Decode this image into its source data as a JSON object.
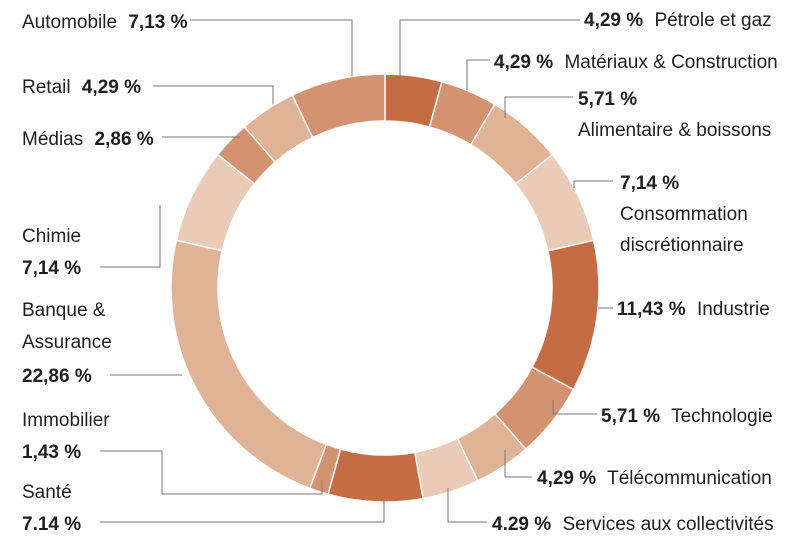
{
  "chart_data": {
    "type": "pie",
    "donut": true,
    "start_angle_deg": 0,
    "direction": "clockwise",
    "colors": {
      "dark": "#c46c43",
      "medium": "#d39371",
      "light": "#e0b397",
      "pale": "#e9cbb8"
    },
    "slices": [
      {
        "key": "petrole",
        "label": "Pétrole et gaz",
        "value": 4.29,
        "display": "4,29 %",
        "color": "#c46c43"
      },
      {
        "key": "materiaux",
        "label": "Matériaux & Construction",
        "value": 4.29,
        "display": "4,29 %",
        "color": "#d39371"
      },
      {
        "key": "alimentaire",
        "label": "Alimentaire & boissons",
        "value": 5.71,
        "display": "5,71 %",
        "color": "#e0b397"
      },
      {
        "key": "consommation",
        "label": "Consommation discrétionnaire",
        "value": 7.14,
        "display": "7,14 %",
        "color": "#e9cbb8"
      },
      {
        "key": "industrie",
        "label": "Industrie",
        "value": 11.43,
        "display": "11,43 %",
        "color": "#c46c43"
      },
      {
        "key": "technologie",
        "label": "Technologie",
        "value": 5.71,
        "display": "5,71 %",
        "color": "#d39371"
      },
      {
        "key": "telecom",
        "label": "Télécommunication",
        "value": 4.29,
        "display": "4,29 %",
        "color": "#e0b397"
      },
      {
        "key": "services",
        "label": "Services aux collectivités",
        "value": 4.29,
        "display": "4.29 %",
        "color": "#e9cbb8"
      },
      {
        "key": "sante",
        "label": "Santé",
        "value": 7.14,
        "display": "7.14 %",
        "color": "#c46c43"
      },
      {
        "key": "immobilier",
        "label": "Immobilier",
        "value": 1.43,
        "display": "1,43 %",
        "color": "#d39371"
      },
      {
        "key": "banque",
        "label": "Banque & Assurance",
        "value": 22.86,
        "display": "22,86 %",
        "color": "#e0b397"
      },
      {
        "key": "chimie",
        "label": "Chimie",
        "value": 7.14,
        "display": "7,14 %",
        "color": "#e9cbb8"
      },
      {
        "key": "medias",
        "label": "Médias",
        "value": 2.86,
        "display": "2,86 %",
        "color": "#d39371"
      },
      {
        "key": "retail",
        "label": "Retail",
        "value": 4.29,
        "display": "4,29 %",
        "color": "#e0b397"
      },
      {
        "key": "automobile",
        "label": "Automobile",
        "value": 7.13,
        "display": "7,13 %",
        "color": "#d39371"
      }
    ],
    "labels": {
      "petrole": {
        "pct": "4,29 %",
        "name": "Pétrole et gaz"
      },
      "materiaux": {
        "pct": "4,29 %",
        "name": "Matériaux & Construction"
      },
      "alimentaire": {
        "pct": "5,71 %",
        "line2": "Alimentaire & boissons"
      },
      "consommation": {
        "pct": "7,14 %",
        "line2": "Consommation",
        "line3": "discrétionnaire"
      },
      "industrie": {
        "pct": "11,43 %",
        "name": "Industrie"
      },
      "technologie": {
        "pct": "5,71 %",
        "name": "Technologie"
      },
      "telecom": {
        "pct": "4,29 %",
        "name": "Télécommunication"
      },
      "services": {
        "pct": "4.29 %",
        "name": "Services aux collectivités"
      },
      "sante": {
        "name": "Santé",
        "pct": "7.14 %"
      },
      "immobilier": {
        "name": "Immobilier",
        "pct": "1,43 %"
      },
      "banque": {
        "line1": "Banque &",
        "line2": "Assurance",
        "pct": "22,86 %"
      },
      "chimie": {
        "name": "Chimie",
        "pct": "7,14 %"
      },
      "medias": {
        "name": "Médias",
        "pct": "2,86 %"
      },
      "retail": {
        "name": "Retail",
        "pct": "4,29 %"
      },
      "automobile": {
        "name": "Automobile",
        "pct": "7,13 %"
      }
    }
  }
}
